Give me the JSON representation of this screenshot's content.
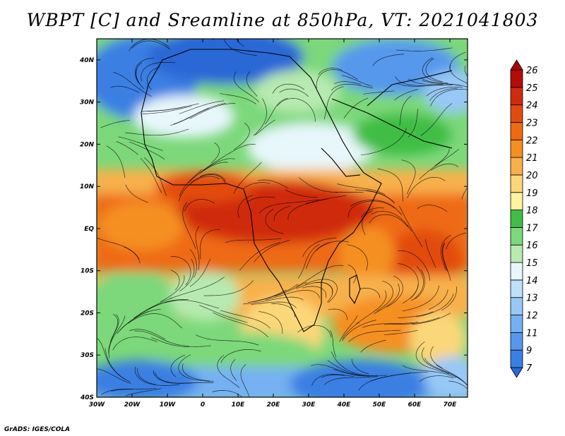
{
  "title": "WBPT [C] and Sreamline at 850hPa, VT: 2021041803",
  "credit": "GrADS: IGES/COLA",
  "map": {
    "lon_range": [
      -30,
      75
    ],
    "lat_range": [
      -40,
      45
    ],
    "lon_ticks": [
      {
        "value": -30,
        "label": "30W"
      },
      {
        "value": -20,
        "label": "20W"
      },
      {
        "value": -10,
        "label": "10W"
      },
      {
        "value": 0,
        "label": "0"
      },
      {
        "value": 10,
        "label": "10E"
      },
      {
        "value": 20,
        "label": "20E"
      },
      {
        "value": 30,
        "label": "30E"
      },
      {
        "value": 40,
        "label": "40E"
      },
      {
        "value": 50,
        "label": "50E"
      },
      {
        "value": 60,
        "label": "60E"
      },
      {
        "value": 70,
        "label": "70E"
      }
    ],
    "lat_ticks": [
      {
        "value": 40,
        "label": "40N"
      },
      {
        "value": 30,
        "label": "30N"
      },
      {
        "value": 20,
        "label": "20N"
      },
      {
        "value": 10,
        "label": "10N"
      },
      {
        "value": 0,
        "label": "EQ"
      },
      {
        "value": -10,
        "label": "10S"
      },
      {
        "value": -20,
        "label": "20S"
      },
      {
        "value": -30,
        "label": "30S"
      },
      {
        "value": -40,
        "label": "40S"
      }
    ]
  },
  "colorbar": {
    "levels": [
      "7",
      "9",
      "11",
      "12",
      "13",
      "14",
      "15",
      "16",
      "17",
      "18",
      "19",
      "20",
      "21",
      "22",
      "23",
      "24",
      "25",
      "26"
    ],
    "colors": [
      "#2a68d6",
      "#3a7fe3",
      "#5798ec",
      "#76b0f2",
      "#98c8f6",
      "#bfe0fa",
      "#e8f7fc",
      "#b7eab0",
      "#7cd87a",
      "#3fbd45",
      "#fff2a0",
      "#fbd779",
      "#f8b04c",
      "#f58f24",
      "#ef6a12",
      "#e24b0f",
      "#d02b0c",
      "#b50b0a",
      "#a8000a"
    ]
  }
}
